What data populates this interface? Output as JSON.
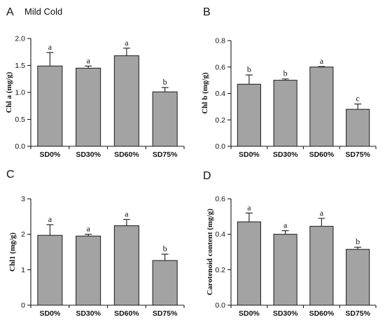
{
  "figure": {
    "condition_title": "Mild Cold"
  },
  "chart_data": [
    {
      "panel": "A",
      "type": "bar",
      "categories": [
        "SD0%",
        "SD30%",
        "SD60%",
        "SD75%"
      ],
      "values": [
        1.49,
        1.45,
        1.68,
        1.01
      ],
      "errors": [
        0.25,
        0.04,
        0.14,
        0.08
      ],
      "letters": [
        "a",
        "a",
        "a",
        "b"
      ],
      "ylabel": "Chl a (mg/g)",
      "ylim": [
        0,
        2.0
      ],
      "yticks": [
        0,
        0.5,
        1.0,
        1.5,
        2.0
      ],
      "ytick_labels": [
        "0.0",
        "0.5",
        "1.0",
        "1.5",
        "2.0"
      ],
      "grid": false
    },
    {
      "panel": "B",
      "type": "bar",
      "categories": [
        "SD0%",
        "SD30%",
        "SD60%",
        "SD75%"
      ],
      "values": [
        0.47,
        0.5,
        0.6,
        0.28
      ],
      "errors": [
        0.07,
        0.01,
        0.004,
        0.04
      ],
      "letters": [
        "b",
        "b",
        "a",
        "c"
      ],
      "ylabel": "Chl b (mg/g)",
      "ylim": [
        0,
        0.8
      ],
      "yticks": [
        0,
        0.2,
        0.4,
        0.6,
        0.8
      ],
      "ytick_labels": [
        "0.0",
        "0.2",
        "0.4",
        "0.6",
        "0.8"
      ],
      "grid": false
    },
    {
      "panel": "C",
      "type": "bar",
      "categories": [
        "SD0%",
        "SD30%",
        "SD60%",
        "SD75%"
      ],
      "values": [
        1.97,
        1.95,
        2.24,
        1.26
      ],
      "errors": [
        0.3,
        0.05,
        0.18,
        0.18
      ],
      "letters": [
        "a",
        "a",
        "a",
        "b"
      ],
      "ylabel": "Chl1 (mg/g)",
      "ylim": [
        0,
        3
      ],
      "yticks": [
        0,
        1,
        2,
        3
      ],
      "ytick_labels": [
        "0",
        "1",
        "2",
        "3"
      ],
      "grid": false
    },
    {
      "panel": "D",
      "type": "bar",
      "categories": [
        "SD0%",
        "SD30%",
        "SD60%",
        "SD75%"
      ],
      "values": [
        0.47,
        0.4,
        0.445,
        0.315
      ],
      "errors": [
        0.05,
        0.02,
        0.045,
        0.012
      ],
      "letters": [
        "a",
        "a",
        "a",
        "b"
      ],
      "ylabel": "Carotenoid content  (mg/g)",
      "ylim": [
        0,
        0.6
      ],
      "yticks": [
        0,
        0.2,
        0.4,
        0.6
      ],
      "ytick_labels": [
        "0.0",
        "0.2",
        "0.4",
        "0.6"
      ],
      "grid": false
    }
  ]
}
